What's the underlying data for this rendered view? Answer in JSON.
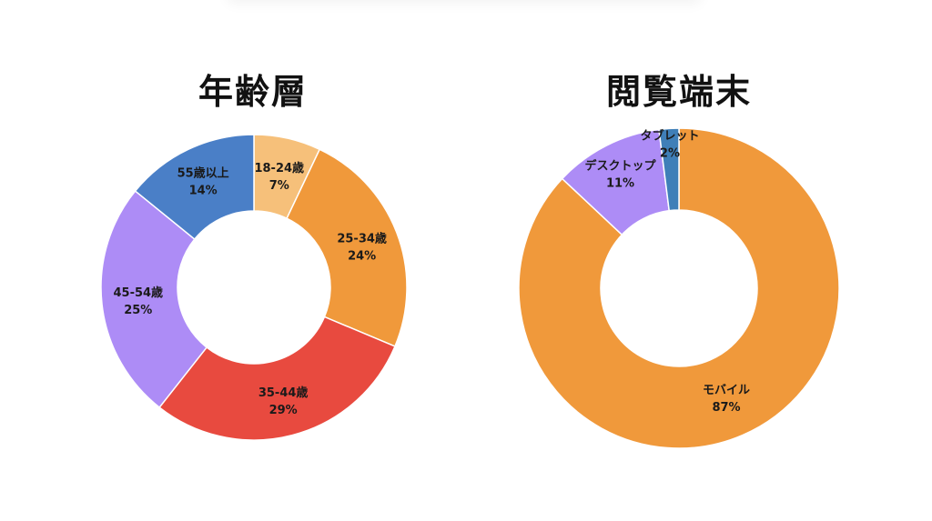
{
  "chart_data": [
    {
      "type": "pie",
      "title": "年齢層",
      "categories": [
        "18-24歳",
        "25-34歳",
        "35-44歳",
        "45-54歳",
        "55歳以上"
      ],
      "values": [
        7,
        24,
        29,
        25,
        14
      ],
      "labels": [
        "7%",
        "24%",
        "29%",
        "25%",
        "14%"
      ],
      "colors": [
        "#f6c07a",
        "#f0993b",
        "#e84a3f",
        "#ad8cf6",
        "#4a7fc7"
      ]
    },
    {
      "type": "pie",
      "title": "閲覧端末",
      "categories": [
        "モバイル",
        "デスクトップ",
        "タブレット"
      ],
      "values": [
        87,
        11,
        2
      ],
      "labels": [
        "87%",
        "11%",
        "2%"
      ],
      "colors": [
        "#f0993b",
        "#ad8cf6",
        "#3f7fb8"
      ]
    }
  ]
}
